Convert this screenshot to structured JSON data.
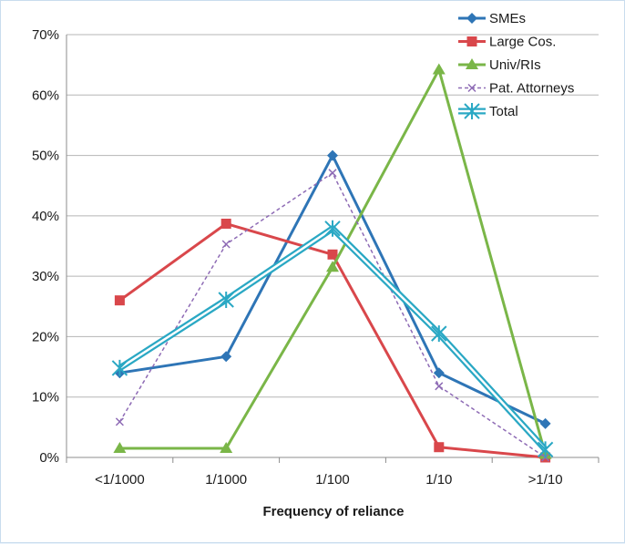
{
  "chart_data": {
    "type": "line",
    "title": "",
    "xlabel": "Frequency of reliance",
    "ylabel": "",
    "categories": [
      "<1/1000",
      "1/1000",
      "1/100",
      "1/10",
      ">1/10"
    ],
    "y_ticks": [
      "0%",
      "10%",
      "20%",
      "30%",
      "40%",
      "50%",
      "60%",
      "70%"
    ],
    "ylim": [
      0,
      70
    ],
    "y_unit": "%",
    "grid": "horizontal",
    "legend_position": "top-right",
    "series": [
      {
        "name": "SMEs",
        "values": [
          14,
          16.7,
          50,
          14,
          5.6
        ],
        "color": "#2e75b6",
        "marker": "diamond",
        "dashed": false,
        "double": false
      },
      {
        "name": "Large Cos.",
        "values": [
          26,
          38.7,
          33.6,
          1.7,
          0
        ],
        "color": "#d9474b",
        "marker": "square",
        "dashed": false,
        "double": false
      },
      {
        "name": "Univ/RIs",
        "values": [
          1.5,
          1.5,
          31.5,
          64.2,
          0.5
        ],
        "color": "#7ab648",
        "marker": "triangle",
        "dashed": false,
        "double": false
      },
      {
        "name": "Pat. Attorneys",
        "values": [
          5.9,
          35.3,
          47.1,
          11.8,
          0
        ],
        "color": "#8e6bb5",
        "marker": "x",
        "dashed": true,
        "double": false
      },
      {
        "name": "Total",
        "values": [
          14.8,
          26.1,
          37.9,
          20.5,
          1.3
        ],
        "color": "#2aa8c4",
        "marker": "star",
        "dashed": false,
        "double": true
      }
    ]
  }
}
